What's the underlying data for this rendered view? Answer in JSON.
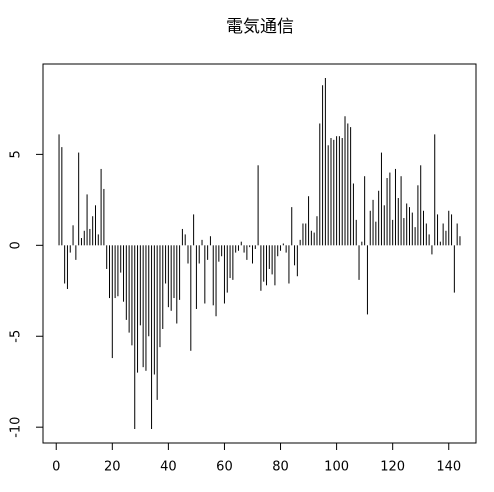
{
  "chart_data": {
    "type": "bar",
    "title": "電気通信",
    "x": [
      1,
      2,
      3,
      4,
      5,
      6,
      7,
      8,
      9,
      10,
      11,
      12,
      13,
      14,
      15,
      16,
      17,
      18,
      19,
      20,
      21,
      22,
      23,
      24,
      25,
      26,
      27,
      28,
      29,
      30,
      31,
      32,
      33,
      34,
      35,
      36,
      37,
      38,
      39,
      40,
      41,
      42,
      43,
      44,
      45,
      46,
      47,
      48,
      49,
      50,
      51,
      52,
      53,
      54,
      55,
      56,
      57,
      58,
      59,
      60,
      61,
      62,
      63,
      64,
      65,
      66,
      67,
      68,
      69,
      70,
      71,
      72,
      73,
      74,
      75,
      76,
      77,
      78,
      79,
      80,
      81,
      82,
      83,
      84,
      85,
      86,
      87,
      88,
      89,
      90,
      91,
      92,
      93,
      94,
      95,
      96,
      97,
      98,
      99,
      100,
      101,
      102,
      103,
      104,
      105,
      106,
      107,
      108,
      109,
      110,
      111,
      112,
      113,
      114,
      115,
      116,
      117,
      118,
      119,
      120,
      121,
      122,
      123,
      124,
      125,
      126,
      127,
      128,
      129,
      130,
      131,
      132,
      133,
      134,
      135,
      136,
      137,
      138,
      139,
      140,
      141,
      142,
      143,
      144
    ],
    "values": [
      6.1,
      5.4,
      -2.1,
      -2.4,
      -0.4,
      1.1,
      -0.8,
      5.1,
      0.4,
      0.8,
      2.8,
      0.9,
      1.6,
      2.2,
      0.6,
      4.2,
      3.1,
      -1.3,
      -2.9,
      -6.2,
      -2.9,
      -2.8,
      -1.5,
      -3.1,
      -4.1,
      -4.8,
      -5.5,
      -10.1,
      -7.0,
      -4.4,
      -6.7,
      -6.9,
      -5.0,
      -10.1,
      -7.1,
      -8.5,
      -5.6,
      -4.6,
      -2.1,
      -3.4,
      -3.6,
      -2.9,
      -4.3,
      -3.0,
      0.9,
      0.6,
      -1.0,
      -5.8,
      1.7,
      -3.5,
      -1.0,
      0.3,
      -3.2,
      -0.8,
      0.5,
      -3.3,
      -3.9,
      -0.9,
      -0.6,
      -3.2,
      -2.6,
      -1.8,
      -1.9,
      -0.4,
      -0.3,
      0.2,
      -0.4,
      -0.8,
      -0.1,
      -1.0,
      -0.2,
      4.4,
      -2.5,
      -2.0,
      -2.2,
      -1.3,
      -1.6,
      -2.2,
      -0.6,
      -0.3,
      0.1,
      -0.4,
      -2.1,
      2.1,
      -1.1,
      -1.7,
      0.3,
      1.2,
      1.2,
      2.7,
      0.8,
      0.7,
      1.6,
      6.7,
      8.8,
      9.2,
      5.5,
      5.9,
      5.8,
      6.0,
      6.0,
      5.9,
      7.1,
      6.7,
      6.5,
      3.4,
      1.4,
      -1.9,
      0.2,
      3.8,
      -3.8,
      1.9,
      2.5,
      1.3,
      3.0,
      5.1,
      2.2,
      3.7,
      4.0,
      1.4,
      4.2,
      2.6,
      3.8,
      1.5,
      2.3,
      2.1,
      1.8,
      1.0,
      3.3,
      4.4,
      1.9,
      1.2,
      0.6,
      -0.5,
      6.1,
      1.7,
      0.2,
      1.2,
      0.8,
      1.9,
      1.7,
      -2.6,
      1.2,
      0.5
    ],
    "color": "#000000",
    "xlim": [
      -4.72,
      149.72
    ],
    "xticks": [
      0,
      20,
      40,
      60,
      80,
      100,
      120,
      140
    ],
    "ylim": [
      -10.87,
      9.97
    ],
    "yticks": [
      -10,
      -5,
      0,
      5
    ]
  }
}
